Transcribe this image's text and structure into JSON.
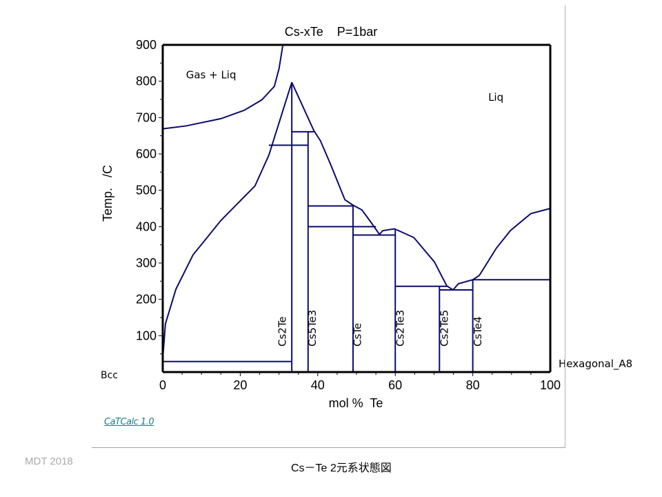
{
  "chart_data": {
    "type": "line",
    "title": "Cs-xTe    P=1bar",
    "xlabel": "mol %  Te",
    "ylabel": "Temp.   /C",
    "xlim": [
      0,
      100
    ],
    "ylim": [
      0,
      900
    ],
    "xticks": [
      0,
      20,
      40,
      60,
      80,
      100
    ],
    "yticks": [
      100,
      200,
      300,
      400,
      500,
      600,
      700,
      800,
      900
    ],
    "series": [
      {
        "name": "gas-liquid boundary",
        "points": [
          [
            0,
            669
          ],
          [
            6,
            677
          ],
          [
            15,
            697
          ],
          [
            21,
            720
          ],
          [
            25.6,
            749
          ],
          [
            28.8,
            786
          ],
          [
            30,
            834
          ],
          [
            31,
            900
          ]
        ]
      },
      {
        "name": "liquidus Cs side",
        "points": [
          [
            0,
            37
          ],
          [
            0.7,
            133
          ],
          [
            3.4,
            228
          ],
          [
            7.8,
            322
          ],
          [
            15,
            417
          ],
          [
            23.8,
            512
          ],
          [
            27.4,
            597
          ],
          [
            33.3,
            797
          ]
        ]
      },
      {
        "name": "liquidus Cs2Te-Cs2Te5",
        "points": [
          [
            33.3,
            797
          ],
          [
            39,
            664
          ],
          [
            40.7,
            636
          ],
          [
            43.4,
            569
          ],
          [
            47,
            474
          ],
          [
            49.1,
            459
          ],
          [
            51.4,
            446
          ],
          [
            54,
            408
          ],
          [
            55.9,
            379
          ],
          [
            56.8,
            389
          ],
          [
            59.8,
            394
          ],
          [
            64.8,
            370
          ],
          [
            70.1,
            303
          ],
          [
            73.3,
            237
          ],
          [
            74.9,
            226
          ],
          [
            76.3,
            243
          ],
          [
            80,
            254
          ]
        ]
      },
      {
        "name": "liquidus Te side",
        "points": [
          [
            80,
            254
          ],
          [
            81.7,
            266
          ],
          [
            86.1,
            341
          ],
          [
            89.7,
            389
          ],
          [
            95,
            436
          ],
          [
            100,
            450
          ]
        ]
      },
      {
        "name": "eutectic Cs-Cs2Te",
        "points": [
          [
            0,
            29
          ],
          [
            33.3,
            29
          ]
        ]
      },
      {
        "name": "Cs2Te",
        "points": [
          [
            33.3,
            0
          ],
          [
            33.3,
            797
          ]
        ]
      },
      {
        "name": "transition 624",
        "points": [
          [
            27.4,
            624
          ],
          [
            37.5,
            624
          ]
        ]
      },
      {
        "name": "Cs5Te3",
        "points": [
          [
            37.5,
            0
          ],
          [
            37.5,
            661
          ]
        ]
      },
      {
        "name": "peritectic 661",
        "points": [
          [
            33.3,
            661
          ],
          [
            39,
            661
          ]
        ]
      },
      {
        "name": "peritectic 457",
        "points": [
          [
            37.5,
            457
          ],
          [
            49.1,
            457
          ]
        ]
      },
      {
        "name": "transition 400",
        "points": [
          [
            37.5,
            400
          ],
          [
            55,
            400
          ]
        ]
      },
      {
        "name": "CsTe",
        "points": [
          [
            49.1,
            0
          ],
          [
            49.1,
            457
          ]
        ]
      },
      {
        "name": "eutectic 377",
        "points": [
          [
            49.1,
            377
          ],
          [
            60,
            377
          ]
        ]
      },
      {
        "name": "Cs2Te3",
        "points": [
          [
            60,
            0
          ],
          [
            60,
            394
          ]
        ]
      },
      {
        "name": "eutectic 236",
        "points": [
          [
            60,
            236
          ],
          [
            73.5,
            236
          ]
        ]
      },
      {
        "name": "Cs2Te5",
        "points": [
          [
            71.4,
            0
          ],
          [
            71.4,
            236
          ]
        ]
      },
      {
        "name": "peritectic 226",
        "points": [
          [
            71.4,
            226
          ],
          [
            80,
            226
          ]
        ]
      },
      {
        "name": "CsTe4",
        "points": [
          [
            80,
            0
          ],
          [
            80,
            254
          ]
        ]
      },
      {
        "name": "eutectic 254",
        "points": [
          [
            80,
            254
          ],
          [
            100,
            254
          ]
        ]
      }
    ],
    "region_labels": [
      {
        "text": "Gas + Liq",
        "x": 6,
        "y": 808
      },
      {
        "text": "Liq",
        "x": 84,
        "y": 746
      }
    ],
    "end_labels": {
      "left": "Bcc",
      "right": "Hexagonal_A8"
    },
    "compound_labels": [
      {
        "text": "Cs2Te",
        "x": 31.8
      },
      {
        "text": "Cs5Te3",
        "x": 39.5
      },
      {
        "text": "CsTe",
        "x": 51.2
      },
      {
        "text": "Cs2Te3",
        "x": 62.2
      },
      {
        "text": "Cs2Te5",
        "x": 73.6
      },
      {
        "text": "CsTe4",
        "x": 82.2
      }
    ],
    "line_color": "#0a0a6e"
  },
  "footer": {
    "software": "CaTCalc 1.0",
    "author": "MDT  2018",
    "caption": "Cs－Te  2元系状態図"
  }
}
